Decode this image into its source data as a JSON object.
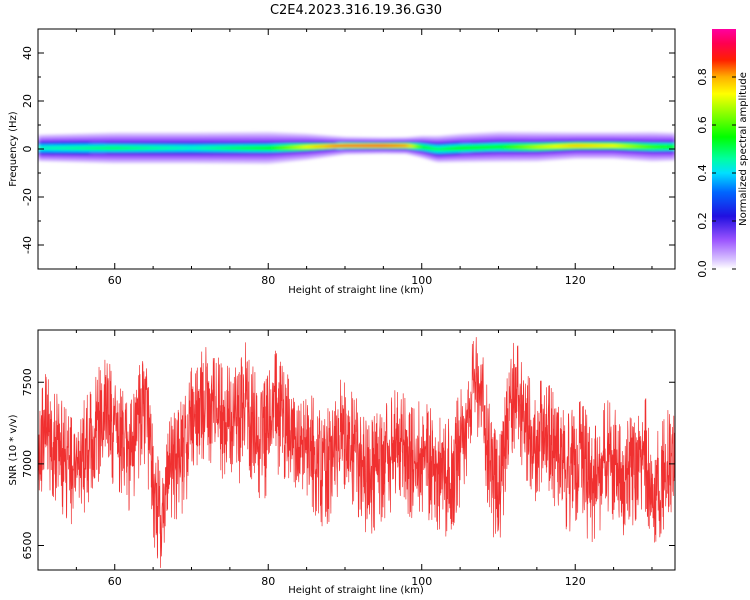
{
  "title": "C2E4.2023.316.19.36.G30",
  "colors": {
    "snr_line": "#f03030",
    "band_core": "#0000c0",
    "band_edge": "#c9a8ff"
  },
  "chart_data": [
    {
      "type": "heatmap",
      "xlabel": "Height of straight line (km)",
      "ylabel": "Frequency (Hz)",
      "xlim": [
        50,
        133
      ],
      "ylim": [
        -50,
        50
      ],
      "x_ticks": [
        60,
        80,
        100,
        120
      ],
      "y_ticks": [
        -40,
        -20,
        0,
        20,
        40
      ],
      "tick_labels_x": [
        "60",
        "80",
        "100",
        "120"
      ],
      "tick_labels_y": [
        "-40",
        "-20",
        "0",
        "20",
        "40"
      ],
      "colorbar": {
        "label": "Normalized spectral amplitude",
        "range": [
          0,
          1
        ],
        "ticks": [
          0.0,
          0.2,
          0.4,
          0.6,
          0.8
        ],
        "tick_labels": [
          "0.0",
          "0.2",
          "0.4",
          "0.6",
          "0.8"
        ],
        "colormap": "gist_ncar-like (violet-blue-cyan-green-yellow-red-magenta)"
      },
      "band": {
        "description": "spectral band centered near 0 Hz",
        "height_km": [
          50,
          60,
          70,
          80,
          85,
          90,
          95,
          98,
          100,
          102,
          105,
          110,
          115,
          120,
          125,
          130,
          133
        ],
        "center_hz": [
          0.5,
          0.5,
          0.5,
          0.5,
          1.0,
          1.5,
          1.5,
          1.5,
          1.0,
          0.0,
          0.5,
          1.0,
          1.0,
          1.5,
          1.5,
          1.0,
          1.0
        ],
        "peak_amplitude": [
          0.45,
          0.5,
          0.45,
          0.55,
          0.75,
          0.92,
          0.93,
          0.85,
          0.55,
          0.5,
          0.55,
          0.55,
          0.7,
          0.8,
          0.75,
          0.6,
          0.55
        ],
        "half_width_hz": [
          2.5,
          2.5,
          2.5,
          2.3,
          2.0,
          1.5,
          1.5,
          1.6,
          2.0,
          2.5,
          2.4,
          2.3,
          2.2,
          2.0,
          2.0,
          2.2,
          2.3
        ],
        "halo_hz": [
          3.5,
          4.5,
          4.5,
          5,
          4,
          2.5,
          2.2,
          2.2,
          3,
          3.5,
          4,
          4.5,
          4.5,
          4,
          4,
          4.5,
          4
        ]
      }
    },
    {
      "type": "line",
      "xlabel": "Height of straight line (km)",
      "ylabel": "SNR (10 * v/v)",
      "xlim": [
        50,
        133
      ],
      "ylim": [
        6350,
        7820
      ],
      "x_ticks": [
        60,
        80,
        100,
        120
      ],
      "y_ticks": [
        6500,
        7000,
        7500
      ],
      "tick_labels_x": [
        "60",
        "80",
        "100",
        "120"
      ],
      "tick_labels_y": [
        "6500",
        "7000",
        "7500"
      ],
      "series": [
        {
          "style": "dense noisy trace, envelope given as min/mean/max per height",
          "x": [
            50,
            51,
            52,
            53,
            54,
            55,
            56,
            57,
            58,
            59,
            60,
            61,
            62,
            63,
            64,
            65,
            66,
            67,
            68,
            69,
            70,
            71,
            72,
            73,
            74,
            75,
            76,
            77,
            78,
            79,
            80,
            81,
            82,
            83,
            84,
            85,
            86,
            87,
            88,
            89,
            90,
            91,
            92,
            93,
            94,
            95,
            96,
            97,
            98,
            99,
            100,
            101,
            102,
            103,
            104,
            105,
            106,
            107,
            108,
            109,
            110,
            111,
            112,
            113,
            114,
            115,
            116,
            117,
            118,
            119,
            120,
            121,
            122,
            123,
            124,
            125,
            126,
            127,
            128,
            129,
            130,
            131,
            132,
            133
          ],
          "mean": [
            7050,
            7250,
            7150,
            7100,
            7000,
            6950,
            7050,
            7100,
            7250,
            7300,
            7200,
            7150,
            7050,
            7250,
            7400,
            6850,
            6650,
            6900,
            7000,
            7050,
            7250,
            7350,
            7400,
            7350,
            7250,
            7300,
            7200,
            7350,
            7250,
            7100,
            7200,
            7350,
            7250,
            7150,
            7050,
            7100,
            7050,
            6950,
            7000,
            7150,
            7200,
            7100,
            7000,
            6900,
            6950,
            7000,
            7050,
            7150,
            7050,
            7000,
            7050,
            7000,
            6950,
            6900,
            6950,
            7100,
            7300,
            7550,
            7300,
            6950,
            6800,
            7150,
            7500,
            7350,
            7200,
            7100,
            7250,
            7100,
            7000,
            6950,
            7000,
            7050,
            6850,
            6900,
            7050,
            7000,
            6900,
            6950,
            7000,
            7100,
            6850,
            6850,
            7000,
            6950
          ],
          "min": [
            6700,
            6850,
            6800,
            6700,
            6650,
            6600,
            6700,
            6800,
            6900,
            6950,
            6850,
            6800,
            6700,
            6900,
            7000,
            6500,
            6360,
            6550,
            6650,
            6700,
            6900,
            7000,
            7050,
            6950,
            6850,
            6950,
            6850,
            6950,
            6900,
            6750,
            6800,
            6950,
            6900,
            6800,
            6700,
            6750,
            6700,
            6600,
            6650,
            6800,
            6850,
            6750,
            6650,
            6550,
            6600,
            6650,
            6700,
            6800,
            6700,
            6650,
            6700,
            6650,
            6600,
            6550,
            6600,
            6750,
            6950,
            7200,
            6900,
            6600,
            6420,
            6800,
            7100,
            7000,
            6850,
            6750,
            6900,
            6750,
            6650,
            6550,
            6650,
            6700,
            6380,
            6550,
            6700,
            6650,
            6550,
            6600,
            6650,
            6750,
            6500,
            6550,
            6650,
            6600
          ],
          "max": [
            7350,
            7550,
            7450,
            7400,
            7300,
            7250,
            7400,
            7450,
            7600,
            7650,
            7550,
            7450,
            7350,
            7600,
            7650,
            7200,
            6950,
            7250,
            7350,
            7400,
            7600,
            7650,
            7800,
            7700,
            7600,
            7700,
            7550,
            7750,
            7600,
            7450,
            7550,
            7700,
            7600,
            7500,
            7400,
            7450,
            7400,
            7300,
            7350,
            7500,
            7550,
            7450,
            7350,
            7250,
            7300,
            7350,
            7400,
            7500,
            7400,
            7350,
            7400,
            7350,
            7300,
            7250,
            7300,
            7450,
            7650,
            7790,
            7650,
            7300,
            7150,
            7500,
            7750,
            7700,
            7550,
            7450,
            7600,
            7450,
            7350,
            7300,
            7350,
            7400,
            7200,
            7250,
            7400,
            7350,
            7250,
            7300,
            7350,
            7450,
            7200,
            7200,
            7350,
            7300
          ]
        }
      ]
    }
  ]
}
